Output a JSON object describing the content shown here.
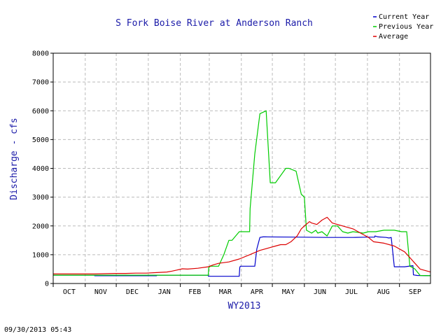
{
  "chart_data": {
    "type": "line",
    "title": "S Fork Boise River at Anderson Ranch",
    "xlabel": "WY2013",
    "ylabel": "Discharge - cfs",
    "ylim": [
      0,
      8000
    ],
    "yticks": [
      0,
      1000,
      2000,
      3000,
      4000,
      5000,
      6000,
      7000,
      8000
    ],
    "xlim": [
      0,
      365
    ],
    "months": [
      "OCT",
      "NOV",
      "DEC",
      "JAN",
      "FEB",
      "MAR",
      "APR",
      "MAY",
      "JUN",
      "JUL",
      "AUG",
      "SEP"
    ],
    "month_starts": [
      0,
      31,
      61,
      92,
      123,
      151,
      182,
      212,
      243,
      273,
      304,
      335
    ],
    "grid": true,
    "legend_position": "top-right",
    "timestamp": "09/30/2013 05:43",
    "series": [
      {
        "name": "Current Year",
        "color": "#0000cc",
        "x": [
          0,
          40,
          40.1,
          100,
          100.1,
          150,
          150.1,
          180,
          180.5,
          181,
          182,
          195,
          197,
          200,
          203,
          205,
          240,
          265,
          290,
          303,
          311,
          311.2,
          314,
          322,
          325,
          327,
          330,
          340,
          348,
          348.5,
          352,
          365
        ],
        "y": [
          290,
          290,
          270,
          270,
          290,
          290,
          250,
          250,
          550,
          600,
          600,
          600,
          1200,
          1600,
          1620,
          1620,
          1610,
          1600,
          1600,
          1610,
          1610,
          1650,
          1620,
          1600,
          1580,
          1600,
          580,
          580,
          620,
          300,
          280,
          270
        ]
      },
      {
        "name": "Previous Year",
        "color": "#00cc00",
        "x": [
          0,
          100,
          150,
          150.5,
          152,
          160,
          165,
          170,
          173,
          180,
          182,
          185,
          190,
          190.5,
          195,
          200,
          206,
          210,
          214,
          215,
          225,
          228,
          235,
          240,
          243,
          245,
          250,
          254,
          256,
          260,
          265,
          270,
          275,
          280,
          285,
          290,
          300,
          305,
          312,
          320,
          326,
          330,
          337,
          340,
          342,
          345,
          348,
          350,
          355,
          365
        ],
        "y": [
          290,
          290,
          290,
          550,
          600,
          600,
          1000,
          1500,
          1500,
          1800,
          1800,
          1800,
          1800,
          2600,
          4500,
          5900,
          6000,
          3500,
          3500,
          3500,
          4000,
          4000,
          3900,
          3100,
          3000,
          1850,
          1750,
          1850,
          1750,
          1800,
          1650,
          2000,
          2000,
          1800,
          1750,
          1800,
          1750,
          1800,
          1800,
          1850,
          1850,
          1850,
          1800,
          1800,
          1800,
          600,
          550,
          500,
          280,
          270
        ]
      },
      {
        "name": "Average",
        "color": "#dd0000",
        "x": [
          0,
          20,
          40,
          60,
          70,
          80,
          90,
          100,
          110,
          115,
          120,
          125,
          130,
          140,
          150,
          155,
          160,
          170,
          180,
          190,
          200,
          210,
          215,
          220,
          225,
          230,
          236,
          240,
          243,
          248,
          250,
          255,
          260,
          265,
          270,
          280,
          290,
          300,
          305,
          310,
          320,
          330,
          340,
          345,
          350,
          355,
          365
        ],
        "y": [
          330,
          330,
          330,
          350,
          350,
          360,
          360,
          380,
          400,
          430,
          470,
          510,
          500,
          530,
          580,
          650,
          700,
          750,
          850,
          1000,
          1150,
          1250,
          1300,
          1350,
          1350,
          1450,
          1650,
          1900,
          2000,
          2150,
          2100,
          2050,
          2200,
          2300,
          2100,
          2000,
          1900,
          1700,
          1600,
          1450,
          1400,
          1300,
          1100,
          900,
          700,
          500,
          400
        ]
      }
    ]
  }
}
